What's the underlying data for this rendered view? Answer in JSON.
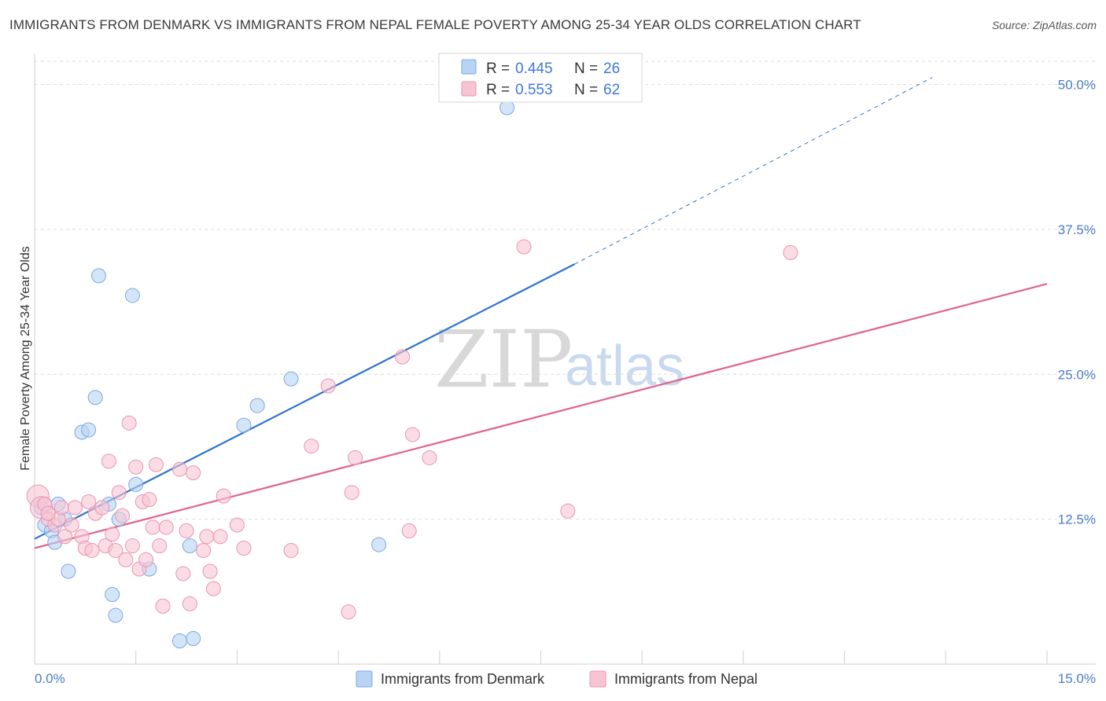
{
  "title": "IMMIGRANTS FROM DENMARK VS IMMIGRANTS FROM NEPAL FEMALE POVERTY AMONG 25-34 YEAR OLDS CORRELATION CHART",
  "source": "Source: ZipAtlas.com",
  "watermark": {
    "zip": "ZIP",
    "atlas": "atlas"
  },
  "colors": {
    "denmark_fill": "#b8d3f3",
    "denmark_stroke": "#7aa8e0",
    "denmark_line": "#2e72cc",
    "nepal_fill": "#f7c4d4",
    "nepal_stroke": "#ec93b0",
    "nepal_line": "#e0638f",
    "tick_label": "#4a7cc8"
  },
  "legend": {
    "rows": [
      {
        "r_label": "R =",
        "r_value": "0.445",
        "n_label": "N =",
        "n_value": "26"
      },
      {
        "r_label": "R =",
        "r_value": "0.553",
        "n_label": "N =",
        "n_value": "62"
      }
    ]
  },
  "bottom_legend": {
    "denmark": "Immigrants from Denmark",
    "nepal": "Immigrants from Nepal"
  },
  "chart_data": {
    "type": "scatter",
    "title": "IMMIGRANTS FROM DENMARK VS IMMIGRANTS FROM NEPAL FEMALE POVERTY AMONG 25-34 YEAR OLDS CORRELATION CHART",
    "xlabel": "",
    "ylabel": "Female Poverty Among 25-34 Year Olds",
    "xlim": [
      0,
      15
    ],
    "ylim": [
      0,
      52
    ],
    "x_tick_labels": [
      "0.0%",
      "15.0%"
    ],
    "y_ticks": [
      12.5,
      25.0,
      37.5,
      50.0
    ],
    "y_tick_labels": [
      "12.5%",
      "25.0%",
      "37.5%",
      "50.0%"
    ],
    "series": [
      {
        "name": "Immigrants from Denmark",
        "R": 0.445,
        "N": 26,
        "trend": {
          "x0": 0.0,
          "y0": 10.8,
          "x1": 8.0,
          "y1": 34.5,
          "dash_x1": 13.3,
          "dash_y1": 50.6
        },
        "points": [
          [
            0.1,
            13.5
          ],
          [
            0.15,
            12.0
          ],
          [
            0.25,
            11.5
          ],
          [
            0.35,
            13.8
          ],
          [
            0.45,
            12.5
          ],
          [
            0.3,
            10.5
          ],
          [
            0.5,
            8.0
          ],
          [
            0.7,
            20.0
          ],
          [
            0.8,
            20.2
          ],
          [
            0.9,
            23.0
          ],
          [
            0.95,
            33.5
          ],
          [
            1.1,
            13.8
          ],
          [
            1.25,
            12.5
          ],
          [
            1.45,
            31.8
          ],
          [
            1.5,
            15.5
          ],
          [
            1.15,
            6.0
          ],
          [
            1.2,
            4.2
          ],
          [
            1.7,
            8.2
          ],
          [
            2.15,
            2.0
          ],
          [
            2.3,
            10.2
          ],
          [
            2.35,
            2.2
          ],
          [
            3.1,
            20.6
          ],
          [
            3.3,
            22.3
          ],
          [
            3.8,
            24.6
          ],
          [
            5.1,
            10.3
          ],
          [
            7.0,
            48.0
          ]
        ]
      },
      {
        "name": "Immigrants from Nepal",
        "R": 0.553,
        "N": 62,
        "trend": {
          "x0": 0.0,
          "y0": 10.0,
          "x1": 15.0,
          "y1": 32.8
        },
        "points": [
          [
            0.05,
            14.5
          ],
          [
            0.1,
            13.5
          ],
          [
            0.15,
            13.8
          ],
          [
            0.2,
            12.5
          ],
          [
            0.3,
            12.0
          ],
          [
            0.35,
            12.5
          ],
          [
            0.4,
            13.5
          ],
          [
            0.45,
            11.0
          ],
          [
            0.55,
            12.0
          ],
          [
            0.6,
            13.5
          ],
          [
            0.7,
            11.0
          ],
          [
            0.75,
            10.0
          ],
          [
            0.8,
            14.0
          ],
          [
            0.85,
            9.8
          ],
          [
            0.9,
            13.0
          ],
          [
            1.0,
            13.5
          ],
          [
            1.05,
            10.2
          ],
          [
            1.1,
            17.5
          ],
          [
            1.15,
            11.2
          ],
          [
            1.2,
            9.8
          ],
          [
            1.25,
            14.8
          ],
          [
            1.3,
            12.8
          ],
          [
            1.4,
            20.8
          ],
          [
            1.45,
            10.2
          ],
          [
            1.5,
            17.0
          ],
          [
            1.55,
            8.2
          ],
          [
            1.6,
            14.0
          ],
          [
            1.65,
            9.0
          ],
          [
            1.7,
            14.2
          ],
          [
            1.75,
            11.8
          ],
          [
            1.8,
            17.2
          ],
          [
            1.85,
            10.2
          ],
          [
            1.9,
            5.0
          ],
          [
            1.95,
            11.8
          ],
          [
            2.15,
            16.8
          ],
          [
            2.2,
            7.8
          ],
          [
            2.25,
            11.5
          ],
          [
            2.3,
            5.2
          ],
          [
            2.35,
            16.5
          ],
          [
            2.5,
            9.8
          ],
          [
            2.55,
            11.0
          ],
          [
            2.6,
            8.0
          ],
          [
            2.65,
            6.5
          ],
          [
            2.75,
            11.0
          ],
          [
            2.8,
            14.5
          ],
          [
            3.0,
            12.0
          ],
          [
            3.1,
            10.0
          ],
          [
            3.8,
            9.8
          ],
          [
            4.1,
            18.8
          ],
          [
            4.35,
            24.0
          ],
          [
            4.65,
            4.5
          ],
          [
            4.7,
            14.8
          ],
          [
            4.75,
            17.8
          ],
          [
            5.45,
            26.5
          ],
          [
            5.55,
            11.5
          ],
          [
            5.6,
            19.8
          ],
          [
            5.85,
            17.8
          ],
          [
            7.25,
            36.0
          ],
          [
            7.9,
            13.2
          ],
          [
            11.2,
            35.5
          ],
          [
            0.2,
            13.0
          ],
          [
            1.35,
            9.0
          ]
        ]
      }
    ]
  }
}
